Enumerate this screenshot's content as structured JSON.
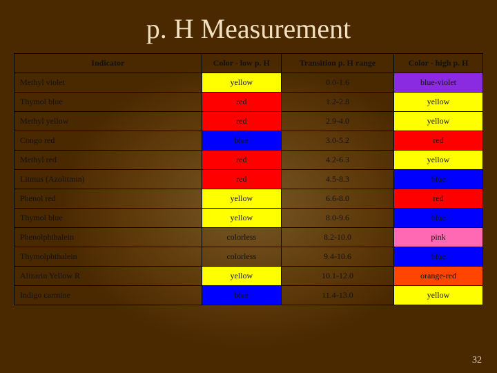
{
  "title": "p. H Measurement",
  "page_number": "32",
  "colors": {
    "yellow": "#ffff00",
    "red": "#ff0000",
    "blue": "#0000ff",
    "blueviolet": "#8a2be2",
    "pink": "#ff69b4",
    "orangered": "#ff4500",
    "colorless": "transparent",
    "header": "transparent"
  },
  "table": {
    "headers": [
      "Indicator",
      "Color - low p. H",
      "Transition p. H range",
      "Color - high p. H"
    ],
    "rows": [
      {
        "indicator": "Methyl violet",
        "low": "yellow",
        "low_bg": "yellow",
        "range": "0.0-1.6",
        "high": "blue-violet",
        "high_bg": "blueviolet"
      },
      {
        "indicator": "Thymol blue",
        "low": "red",
        "low_bg": "red",
        "range": "1.2-2.8",
        "high": "yellow",
        "high_bg": "yellow"
      },
      {
        "indicator": "Methyl yellow",
        "low": "red",
        "low_bg": "red",
        "range": "2.9-4.0",
        "high": "yellow",
        "high_bg": "yellow"
      },
      {
        "indicator": "Congo red",
        "low": "blue",
        "low_bg": "blue",
        "range": "3.0-5.2",
        "high": "red",
        "high_bg": "red"
      },
      {
        "indicator": "Methyl red",
        "low": "red",
        "low_bg": "red",
        "range": "4.2-6.3",
        "high": "yellow",
        "high_bg": "yellow"
      },
      {
        "indicator": "Litmus (Azolitmin)",
        "low": "red",
        "low_bg": "red",
        "range": "4.5-8.3",
        "high": "blue",
        "high_bg": "blue"
      },
      {
        "indicator": "Phenol red",
        "low": "yellow",
        "low_bg": "yellow",
        "range": "6.6-8.0",
        "high": "red",
        "high_bg": "red"
      },
      {
        "indicator": "Thymol blue",
        "low": "yellow",
        "low_bg": "yellow",
        "range": "8.0-9.6",
        "high": "blue",
        "high_bg": "blue"
      },
      {
        "indicator": "Phenolphthalein",
        "low": "colorless",
        "low_bg": "colorless",
        "range": "8.2-10.0",
        "high": "pink",
        "high_bg": "pink"
      },
      {
        "indicator": "Thymolphthalein",
        "low": "colorless",
        "low_bg": "colorless",
        "range": "9.4-10.6",
        "high": "blue",
        "high_bg": "blue"
      },
      {
        "indicator": "Alizarin Yellow R",
        "low": "yellow",
        "low_bg": "yellow",
        "range": "10.1-12.0",
        "high": "orange-red",
        "high_bg": "orangered"
      },
      {
        "indicator": "Indigo carmine",
        "low": "blue",
        "low_bg": "blue",
        "range": "11.4-13.0",
        "high": "yellow",
        "high_bg": "yellow"
      }
    ]
  }
}
